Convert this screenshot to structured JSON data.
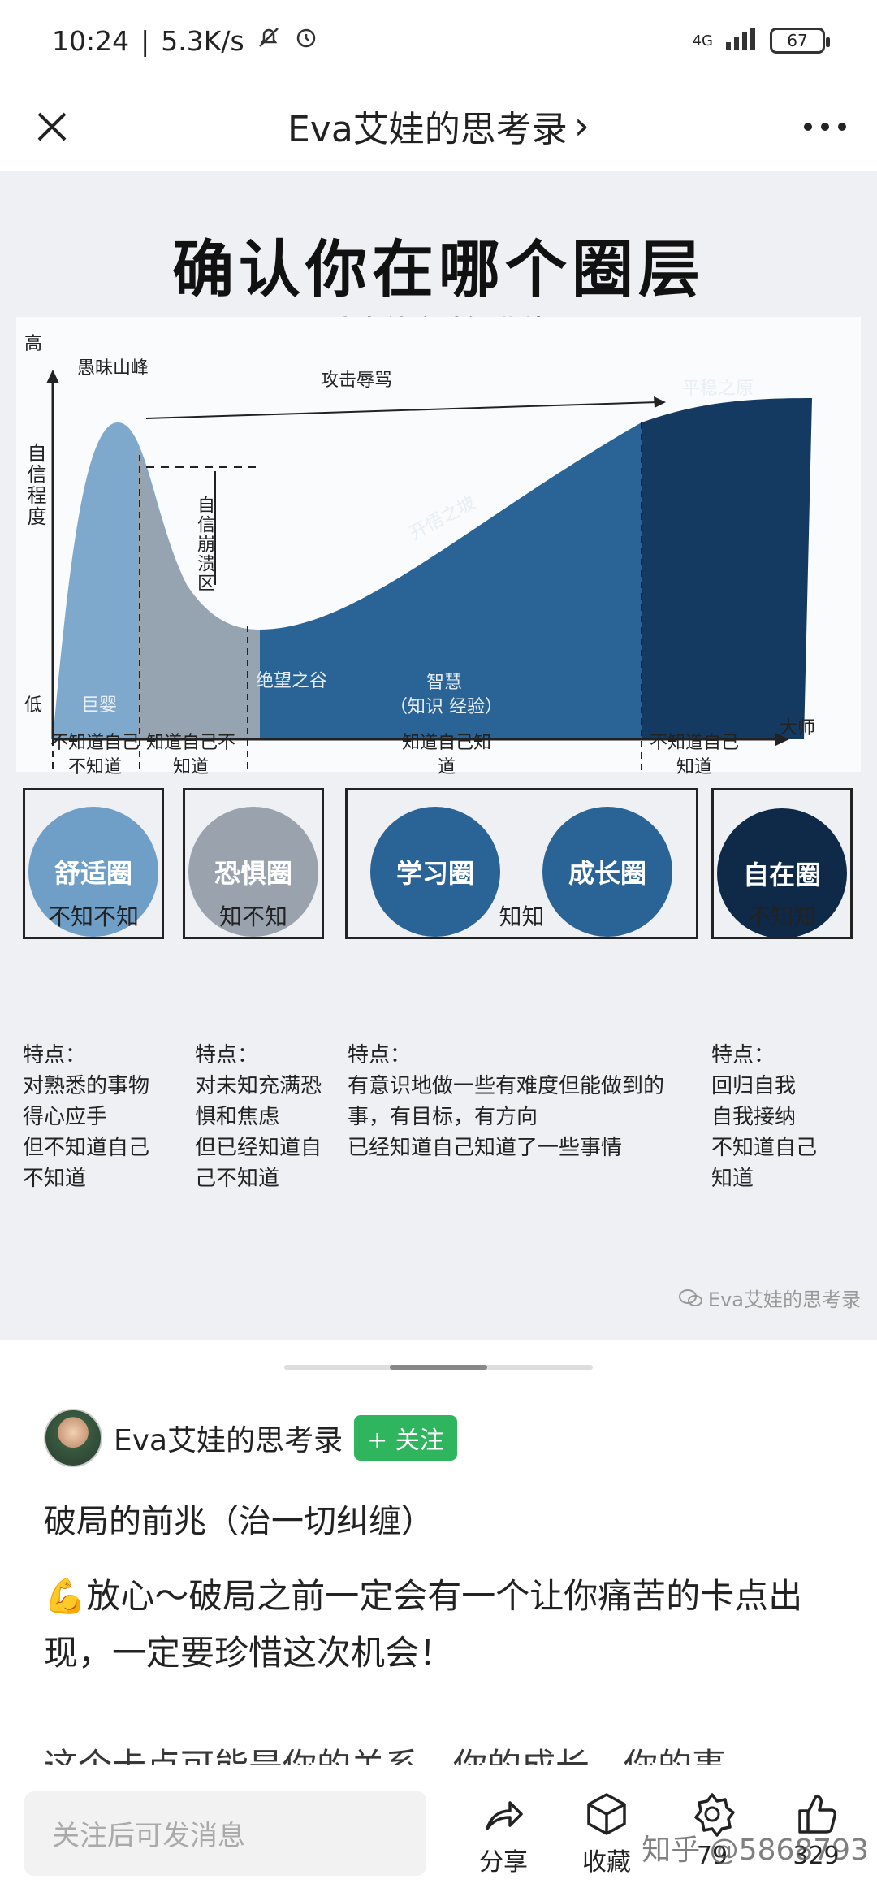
{
  "status": {
    "time": "10:24",
    "speed": "5.3K/s",
    "network": "4G",
    "battery": "67"
  },
  "header": {
    "title": "Eva艾娃的思考录",
    "chevron": "›"
  },
  "image": {
    "title": "确认你在哪个圈层",
    "curve_title": "达克效应认知曲线",
    "y_high": "高",
    "y_low": "低",
    "y_label": "自信程度",
    "peak": "愚昧山峰",
    "attack": "攻击辱骂",
    "plateau": "平稳之原",
    "slope": "开悟之坡",
    "collapse": "自信崩溃区",
    "valley": "绝望之谷",
    "wisdom": "智慧",
    "wisdom_sub": "（知识  经验）",
    "baby": "巨婴",
    "master": "大师",
    "segments": [
      "不知道自己不知道",
      "知道自己不知道",
      "知道自己知道",
      "不知道自己知道"
    ],
    "circles": [
      "舒适圈",
      "恐惧圈",
      "学习圈",
      "成长圈",
      "自在圈"
    ],
    "captions": [
      "不知不知",
      "知不知",
      "知知",
      "不知知"
    ],
    "traits": [
      {
        "head": "特点：",
        "lines": [
          "对熟悉的事物",
          "得心应手",
          "但不知道自己",
          "不知道"
        ]
      },
      {
        "head": "特点：",
        "lines": [
          "对未知充满恐",
          "惧和焦虑",
          "但已经知道自",
          "己不知道"
        ]
      },
      {
        "head": "特点：",
        "lines": [
          "有意识地做一些有难度但能做到的",
          "事，有目标，有方向",
          "已经知道自己知道了一些事情"
        ]
      },
      {
        "head": "特点：",
        "lines": [
          "回归自我",
          "自我接纳",
          "不知道自己",
          "知道"
        ]
      }
    ],
    "watermark": "Eva艾娃的思考录"
  },
  "author": {
    "name": "Eva艾娃的思考录",
    "follow": "+ 关注"
  },
  "post": {
    "title": "破局的前兆（治一切纠缠）",
    "body": "💪放心～破局之前一定会有一个让你痛苦的卡点出现，一定要珍惜这次机会！",
    "cut": "这个卡点可能是你的关系，你的成长，你的事"
  },
  "bottom": {
    "placeholder": "关注后可发消息",
    "share": "分享",
    "collect": "收藏",
    "count1": "79",
    "count2": "329",
    "overlay": "知乎 @5868793"
  },
  "colors": {
    "follow": "#2fb55d",
    "light_blue": "#6f9ec6",
    "grey": "#9aa3ad",
    "mid_blue": "#2a6496",
    "dark_blue": "#0e2a48"
  }
}
